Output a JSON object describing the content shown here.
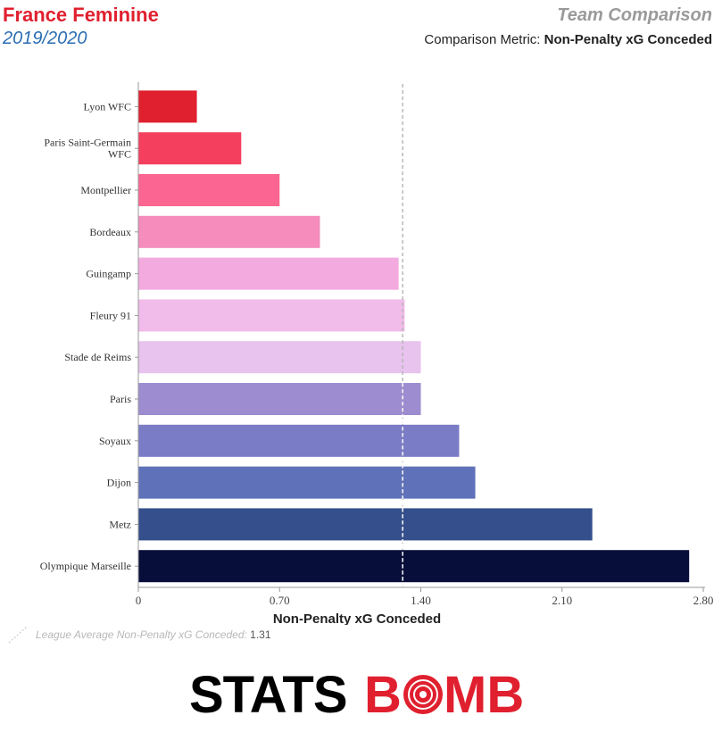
{
  "header": {
    "title": "France Feminine",
    "subtitle": "2019/2020",
    "right_title": "Team Comparison",
    "metric_prefix": "Comparison Metric: ",
    "metric_name": "Non-Penalty xG Conceded"
  },
  "legend": {
    "label": "League Average Non-Penalty xG Conceded: ",
    "value": "1.31"
  },
  "logo": {
    "text_left": "STATS",
    "text_right": "B",
    "text_end": "MB",
    "color_left": "#000000",
    "color_right": "#e0202f"
  },
  "chart_data": {
    "type": "bar",
    "orientation": "horizontal",
    "categories": [
      "Lyon WFC",
      "Paris Saint-Germain WFC",
      "Montpellier",
      "Bordeaux",
      "Guingamp",
      "Fleury 91",
      "Stade de Reims",
      "Paris",
      "Soyaux",
      "Dijon",
      "Metz",
      "Olympique Marseille"
    ],
    "values": [
      0.29,
      0.51,
      0.7,
      0.9,
      1.29,
      1.32,
      1.4,
      1.4,
      1.59,
      1.67,
      2.25,
      2.73
    ],
    "colors": [
      "#e0202f",
      "#f43f5e",
      "#fb6591",
      "#f58cbc",
      "#f3aadf",
      "#f1bbea",
      "#e8c3ee",
      "#9d8ccf",
      "#7a7cc6",
      "#5f71b9",
      "#344f8b",
      "#070e3a"
    ],
    "xlabel": "Non-Penalty xG Conceded",
    "xlim": [
      0,
      2.8
    ],
    "xticks": [
      "0",
      "0.70",
      "1.40",
      "2.10",
      "2.80"
    ],
    "xtick_values": [
      0,
      0.7,
      1.4,
      2.1,
      2.8
    ],
    "reference_line": 1.31
  }
}
